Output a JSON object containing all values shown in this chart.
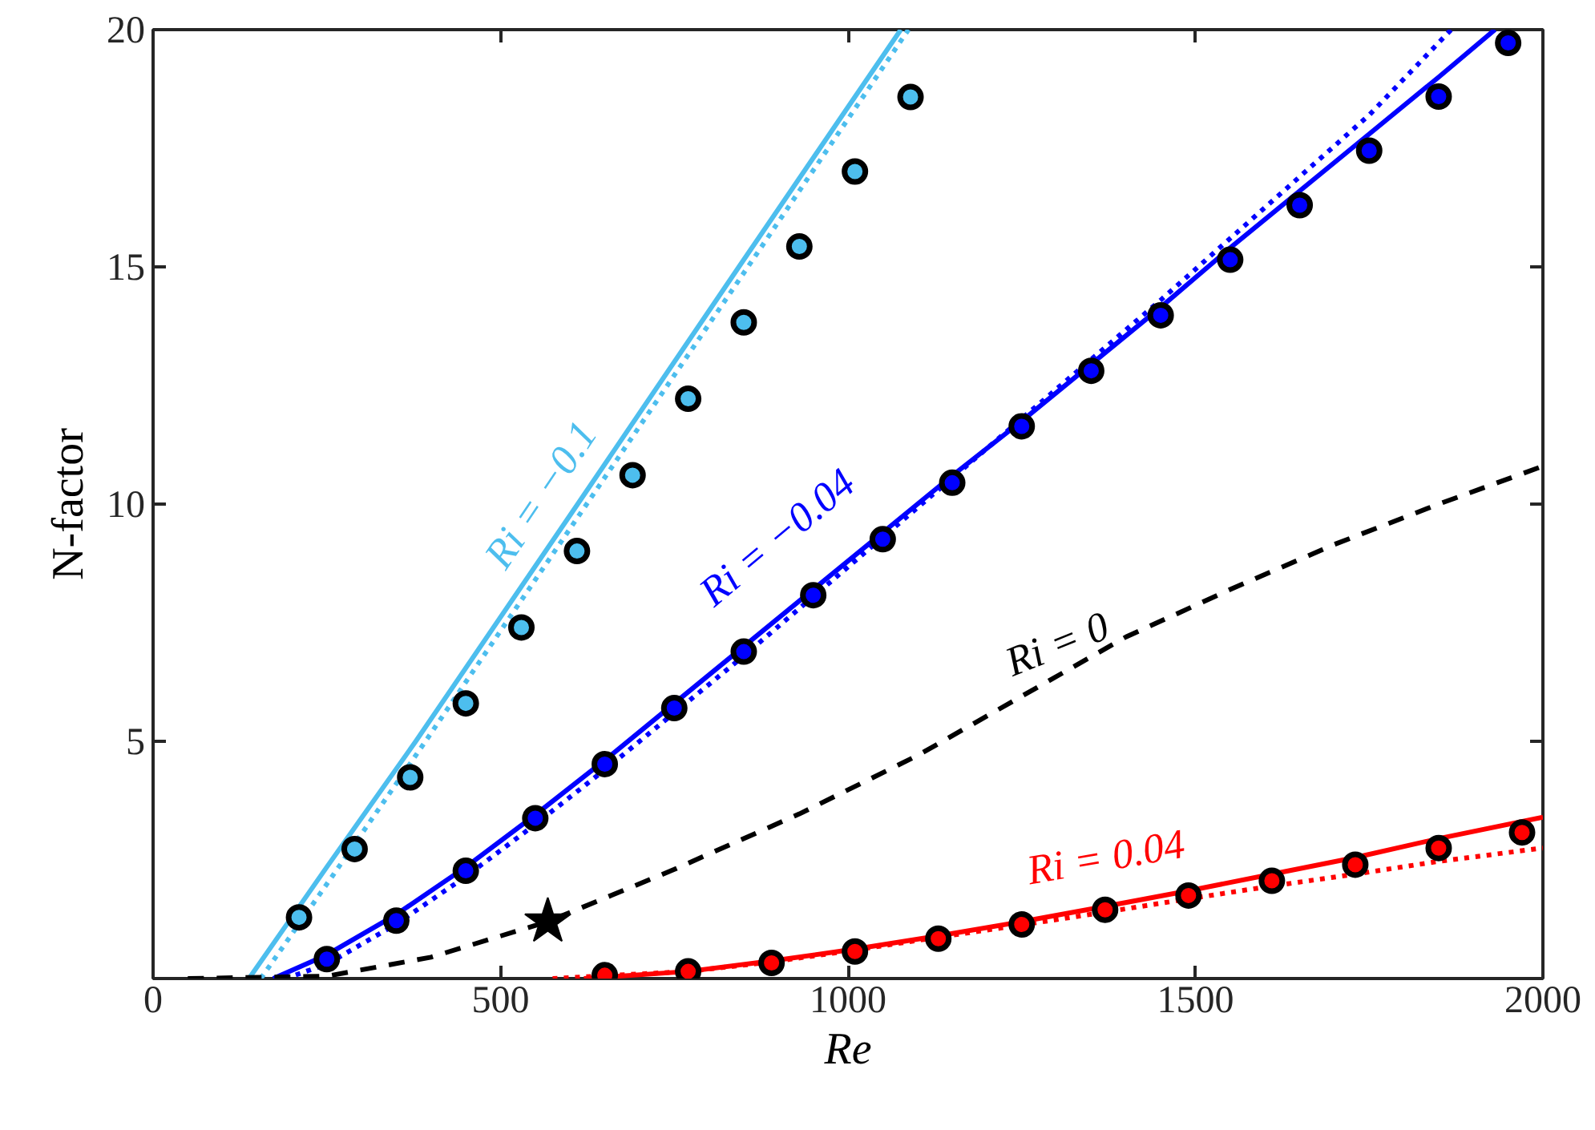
{
  "chart_data": {
    "type": "line",
    "xlabel": "Re",
    "ylabel": "N-factor",
    "xlim": [
      0,
      2000
    ],
    "ylim": [
      0,
      20
    ],
    "xticks": [
      0,
      500,
      1000,
      1500,
      2000
    ],
    "yticks": [
      5,
      10,
      15,
      20
    ],
    "grid": false,
    "series": [
      {
        "color": "#4dbeee",
        "line_style": "solid",
        "x": [
          138,
          250,
          378,
          611,
          843,
          1076
        ],
        "values": [
          0,
          2.35,
          5,
          10,
          15,
          20
        ]
      },
      {
        "color": "#4dbeee",
        "line_style": "dotted",
        "x": [
          155,
          260,
          392,
          624,
          856,
          1087
        ],
        "values": [
          0,
          2.2,
          5,
          10,
          15,
          20
        ]
      },
      {
        "color": "#0000ff",
        "line_style": "solid",
        "x": [
          173,
          250,
          350,
          450,
          550,
          650,
          750,
          850,
          950,
          1050,
          1150,
          1250,
          1350,
          1450,
          1550,
          1650,
          1750,
          1850,
          1931
        ],
        "values": [
          0,
          0.5,
          1.35,
          2.35,
          3.45,
          4.6,
          5.8,
          7.0,
          8.2,
          9.4,
          10.6,
          11.75,
          12.95,
          14.15,
          15.4,
          16.6,
          17.8,
          19.0,
          20
        ]
      },
      {
        "color": "#0000ff",
        "line_style": "dotted",
        "x": [
          190,
          250,
          350,
          450,
          550,
          650,
          750,
          850,
          950,
          1050,
          1150,
          1250,
          1350,
          1450,
          1550,
          1650,
          1750,
          1868
        ],
        "values": [
          0,
          0.3,
          1.15,
          2.15,
          3.25,
          4.4,
          5.6,
          6.8,
          8.05,
          9.3,
          10.55,
          11.8,
          13.05,
          14.3,
          15.6,
          16.9,
          18.2,
          20
        ]
      },
      {
        "color": "#000000",
        "line_style": "dashed",
        "x": [
          50,
          250,
          400,
          568,
          750,
          930,
          1100,
          1250,
          1400,
          1550,
          1700,
          1850,
          2000
        ],
        "values": [
          0,
          0.05,
          0.45,
          1.2,
          2.3,
          3.47,
          4.7,
          5.95,
          7.2,
          8.2,
          9.15,
          10.0,
          10.8
        ]
      },
      {
        "color": "#ff0000",
        "line_style": "solid",
        "x": [
          620,
          770,
          890,
          1010,
          1130,
          1250,
          1370,
          1490,
          1610,
          1730,
          1850,
          2000
        ],
        "values": [
          0,
          0.15,
          0.37,
          0.62,
          0.9,
          1.2,
          1.52,
          1.85,
          2.2,
          2.55,
          2.95,
          3.4
        ]
      },
      {
        "color": "#ff0000",
        "line_style": "dotted",
        "x": [
          575,
          770,
          890,
          1010,
          1130,
          1250,
          1370,
          1490,
          1610,
          1730,
          1850,
          2000
        ],
        "values": [
          0,
          0.15,
          0.35,
          0.6,
          0.87,
          1.13,
          1.4,
          1.68,
          1.95,
          2.2,
          2.47,
          2.75
        ]
      },
      {
        "type": "scatter",
        "marker": "circle",
        "color": "#4dbeee",
        "x": [
          210,
          290,
          370,
          450,
          530,
          610,
          690,
          770,
          850,
          930,
          1010,
          1090
        ],
        "values": [
          1.29,
          2.73,
          4.24,
          5.8,
          7.4,
          9.01,
          10.61,
          12.22,
          13.83,
          15.43,
          17.01,
          18.58
        ]
      },
      {
        "type": "scatter",
        "marker": "circle",
        "color": "#0000ff",
        "x": [
          250,
          350,
          450,
          550,
          650,
          750,
          850,
          950,
          1050,
          1150,
          1250,
          1350,
          1450,
          1550,
          1650,
          1750,
          1850,
          1950
        ],
        "values": [
          0.41,
          1.22,
          2.27,
          3.38,
          4.52,
          5.7,
          6.89,
          8.08,
          9.26,
          10.45,
          11.64,
          12.81,
          13.98,
          15.15,
          16.3,
          17.45,
          18.59,
          19.72
        ]
      },
      {
        "type": "scatter",
        "marker": "circle",
        "color": "#ff0000",
        "x": [
          650,
          770,
          890,
          1010,
          1130,
          1250,
          1370,
          1490,
          1610,
          1730,
          1850,
          1970
        ],
        "values": [
          0.07,
          0.15,
          0.33,
          0.57,
          0.84,
          1.14,
          1.45,
          1.75,
          2.06,
          2.4,
          2.75,
          3.08
        ]
      },
      {
        "type": "scatter",
        "marker": "star",
        "color": "#000000",
        "x": [
          568
        ],
        "values": [
          1.2
        ]
      }
    ],
    "annotations": [
      "Ri = −0.1",
      "Ri = −0.04",
      "Ri = 0",
      "Ri = 0.04"
    ]
  }
}
